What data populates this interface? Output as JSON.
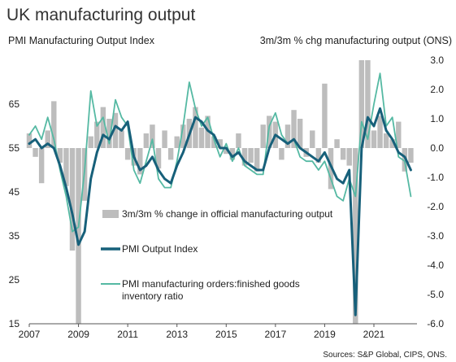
{
  "chart_data": {
    "type": "line",
    "title": "UK manufacturing output",
    "left_axis_title": "PMI Manufacturing Output Index",
    "right_axis_title": "3m/3m % chg manufacturing output (ONS)",
    "source": "Sources: S&P Global, CIPS, ONS.",
    "x_range": [
      2007.0,
      2022.75
    ],
    "x_ticks": [
      "2007",
      "2009",
      "2011",
      "2013",
      "2015",
      "2017",
      "2019",
      "2021"
    ],
    "y_left": {
      "ylim": [
        15,
        75
      ],
      "ticks": [
        "15",
        "25",
        "35",
        "45",
        "55",
        "65"
      ]
    },
    "y_right": {
      "ylim": [
        -6.0,
        3.0
      ],
      "ticks": [
        "3.0",
        "2.0",
        "1.0",
        "0.0",
        "-1.0",
        "-2.0",
        "-3.0",
        "-4.0",
        "-5.0",
        "-6.0"
      ]
    },
    "legend_position": "center-left",
    "series": [
      {
        "name": "3m/3m % change in official manufacturing output",
        "type": "bar",
        "axis": "right",
        "color": "#bdbdbd",
        "x": [
          2007.0,
          2007.25,
          2007.5,
          2007.75,
          2008.0,
          2008.25,
          2008.5,
          2008.75,
          2009.0,
          2009.25,
          2009.5,
          2009.75,
          2010.0,
          2010.25,
          2010.5,
          2010.75,
          2011.0,
          2011.25,
          2011.5,
          2011.75,
          2012.0,
          2012.25,
          2012.5,
          2012.75,
          2013.0,
          2013.25,
          2013.5,
          2013.75,
          2014.0,
          2014.25,
          2014.5,
          2014.75,
          2015.0,
          2015.25,
          2015.5,
          2015.75,
          2016.0,
          2016.25,
          2016.5,
          2016.75,
          2017.0,
          2017.25,
          2017.5,
          2017.75,
          2018.0,
          2018.25,
          2018.5,
          2018.75,
          2019.0,
          2019.25,
          2019.5,
          2019.75,
          2020.0,
          2020.25,
          2020.5,
          2020.75,
          2021.0,
          2021.25,
          2021.5,
          2021.75,
          2022.0,
          2022.25,
          2022.5
        ],
        "values": [
          0.5,
          -0.3,
          -1.2,
          0.6,
          1.6,
          -0.5,
          -1.3,
          -3.5,
          -6.0,
          -1.8,
          0.4,
          0.9,
          1.4,
          1.0,
          1.2,
          0.6,
          -0.4,
          -0.6,
          -0.9,
          0.5,
          0.8,
          -0.7,
          0.6,
          -0.4,
          0.4,
          0.8,
          1.0,
          1.4,
          0.7,
          1.1,
          0.4,
          0.3,
          -0.2,
          -0.4,
          0.5,
          -0.6,
          -0.5,
          -0.8,
          0.8,
          1.1,
          0.9,
          -0.4,
          0.8,
          1.3,
          1.0,
          -0.3,
          0.6,
          -0.5,
          2.2,
          -1.4,
          0.3,
          -0.4,
          -0.6,
          -6.0,
          3.0,
          3.0,
          0.6,
          1.1,
          0.5,
          0.3,
          0.9,
          -0.8,
          -0.5
        ]
      },
      {
        "name": "PMI Output Index",
        "type": "line",
        "axis": "left",
        "color": "#17607a",
        "x": [
          2007.0,
          2007.25,
          2007.5,
          2007.75,
          2008.0,
          2008.25,
          2008.5,
          2008.75,
          2009.0,
          2009.25,
          2009.5,
          2009.75,
          2010.0,
          2010.25,
          2010.5,
          2010.75,
          2011.0,
          2011.25,
          2011.5,
          2011.75,
          2012.0,
          2012.25,
          2012.5,
          2012.75,
          2013.0,
          2013.25,
          2013.5,
          2013.75,
          2014.0,
          2014.25,
          2014.5,
          2014.75,
          2015.0,
          2015.25,
          2015.5,
          2015.75,
          2016.0,
          2016.25,
          2016.5,
          2016.75,
          2017.0,
          2017.25,
          2017.5,
          2017.75,
          2018.0,
          2018.25,
          2018.5,
          2018.75,
          2019.0,
          2019.25,
          2019.5,
          2019.75,
          2020.0,
          2020.25,
          2020.5,
          2020.75,
          2021.0,
          2021.25,
          2021.5,
          2021.75,
          2022.0,
          2022.25,
          2022.5
        ],
        "values": [
          56,
          57,
          55,
          56,
          55,
          51,
          46,
          40,
          33,
          36,
          48,
          54,
          58,
          57,
          60,
          59,
          61,
          53,
          50,
          51,
          53,
          50,
          48,
          47,
          51,
          54,
          58,
          62,
          61,
          59,
          58,
          55,
          55,
          53,
          54,
          52,
          51,
          50,
          50,
          55,
          58,
          57,
          56,
          57,
          55,
          54,
          53,
          52,
          54,
          51,
          48,
          47,
          50,
          17,
          55,
          62,
          60,
          64,
          59,
          57,
          54,
          53,
          50
        ]
      },
      {
        "name": "PMI manufacturing orders:finished goods inventory ratio",
        "type": "line",
        "axis": "left",
        "color": "#55b9a3",
        "x": [
          2007.0,
          2007.25,
          2007.5,
          2007.75,
          2008.0,
          2008.25,
          2008.5,
          2008.75,
          2009.0,
          2009.25,
          2009.5,
          2009.75,
          2010.0,
          2010.25,
          2010.5,
          2010.75,
          2011.0,
          2011.25,
          2011.5,
          2011.75,
          2012.0,
          2012.25,
          2012.5,
          2012.75,
          2013.0,
          2013.25,
          2013.5,
          2013.75,
          2014.0,
          2014.25,
          2014.5,
          2014.75,
          2015.0,
          2015.25,
          2015.5,
          2015.75,
          2016.0,
          2016.25,
          2016.5,
          2016.75,
          2017.0,
          2017.25,
          2017.5,
          2017.75,
          2018.0,
          2018.25,
          2018.5,
          2018.75,
          2019.0,
          2019.25,
          2019.5,
          2019.75,
          2020.0,
          2020.25,
          2020.5,
          2020.75,
          2021.0,
          2021.25,
          2021.5,
          2021.75,
          2022.0,
          2022.25,
          2022.5
        ],
        "values": [
          58,
          60,
          57,
          62,
          57,
          50,
          44,
          36,
          37,
          50,
          68,
          60,
          62,
          56,
          66,
          62,
          60,
          50,
          47,
          52,
          57,
          48,
          46,
          46,
          52,
          60,
          70,
          64,
          60,
          62,
          57,
          53,
          56,
          52,
          55,
          51,
          50,
          49,
          49,
          60,
          63,
          58,
          56,
          57,
          53,
          52,
          52,
          50,
          52,
          48,
          44,
          43,
          48,
          44,
          61,
          57,
          65,
          72,
          60,
          62,
          53,
          52,
          44
        ]
      }
    ]
  }
}
